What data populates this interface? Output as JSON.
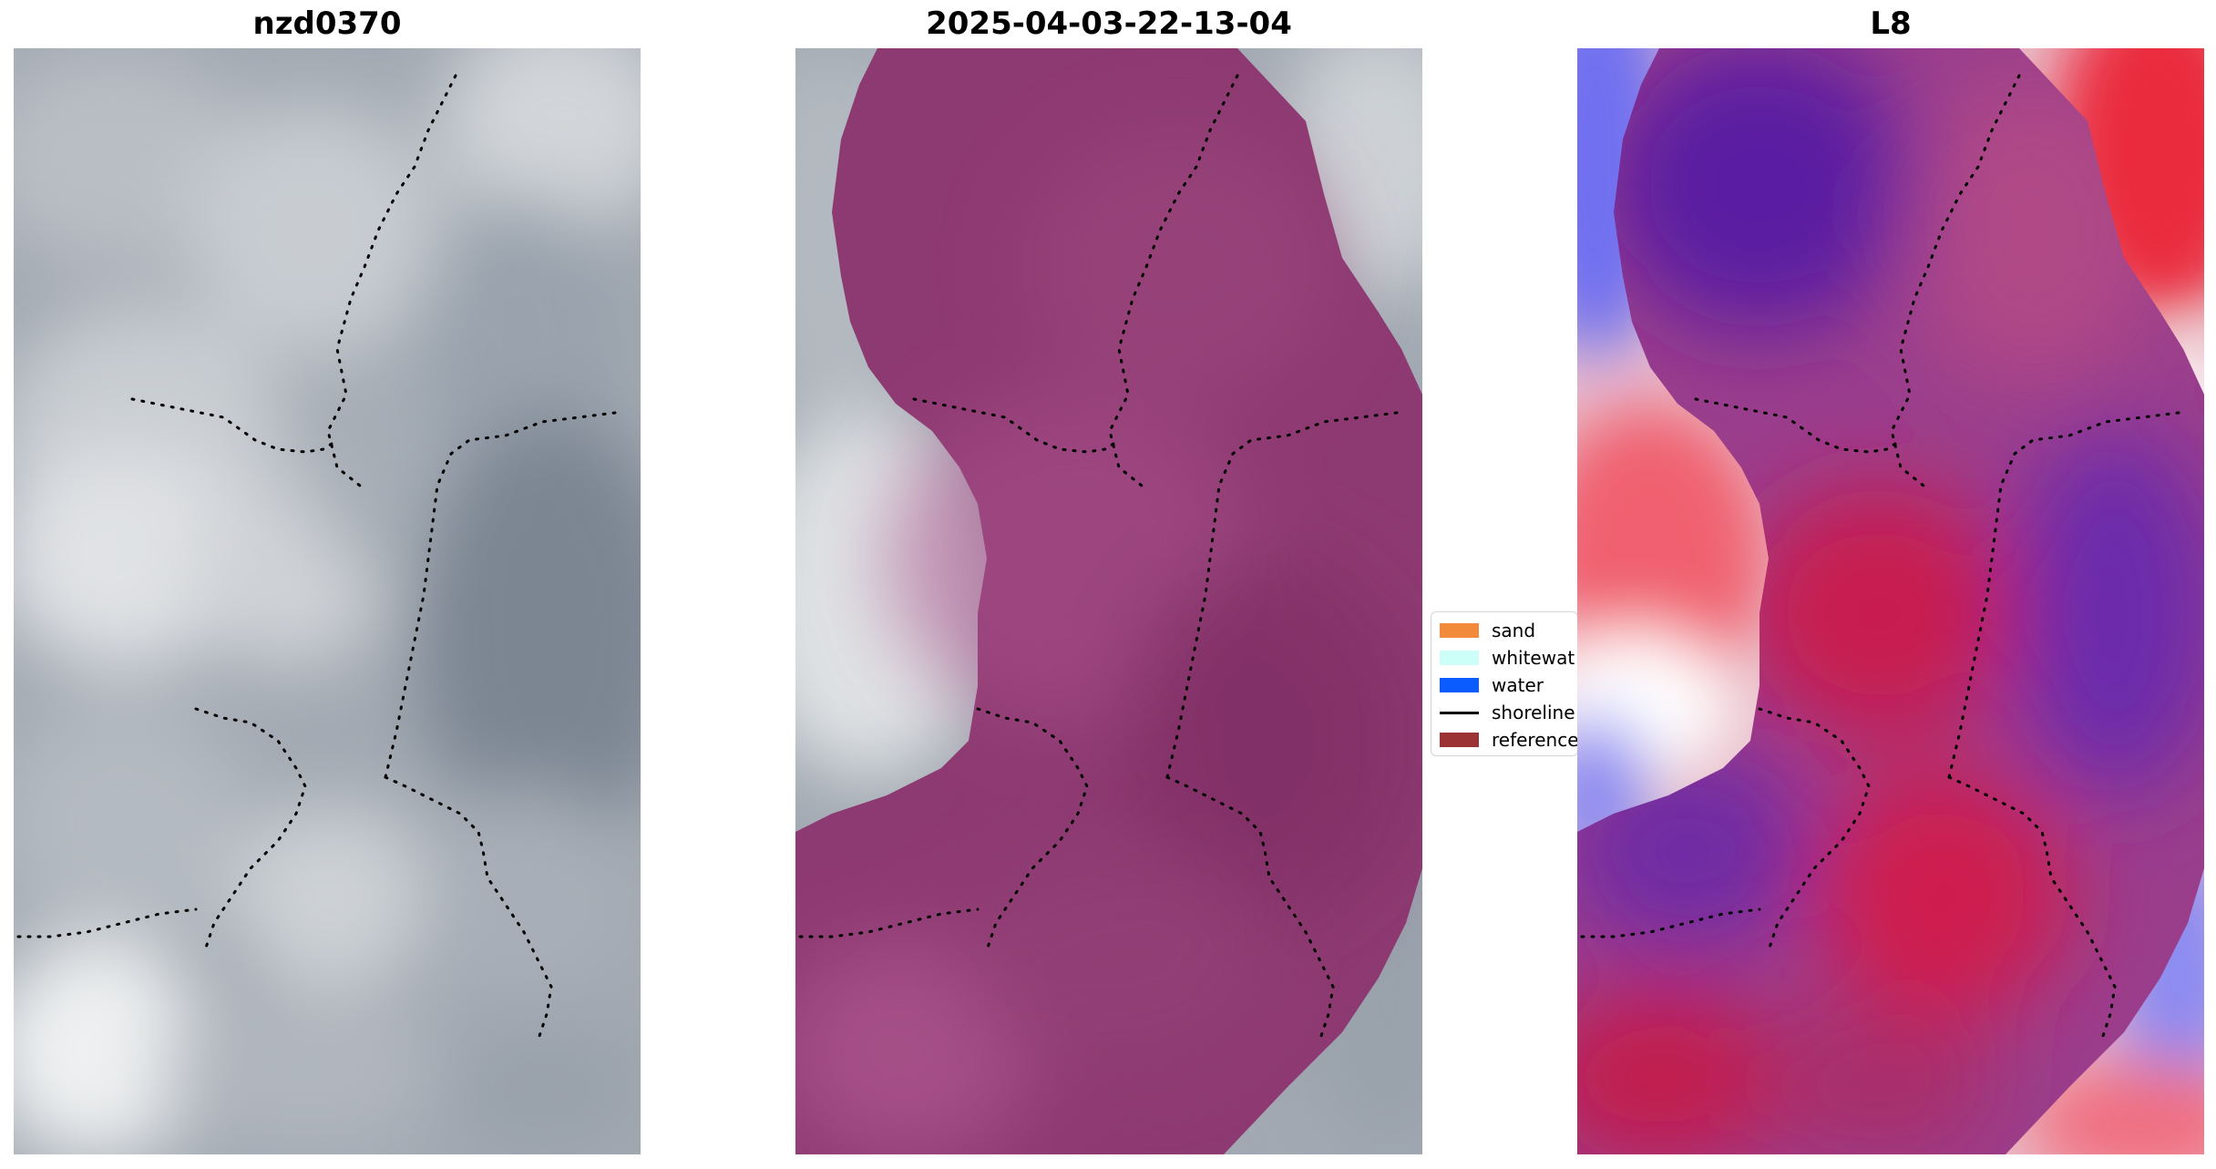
{
  "panels": [
    {
      "title": "nzd0370"
    },
    {
      "title": "2025-04-03-22-13-04"
    },
    {
      "title": "L8"
    }
  ],
  "legend": {
    "items": [
      {
        "label": "sand",
        "color": "#f28a3c",
        "kind": "patch"
      },
      {
        "label": "whitewat",
        "color": "#ccfff8",
        "kind": "patch"
      },
      {
        "label": "water",
        "color": "#0a5cff",
        "kind": "patch"
      },
      {
        "label": "shoreline",
        "color": "#000000",
        "kind": "line"
      },
      {
        "label": "reference",
        "color": "#9b3335",
        "kind": "patch"
      }
    ]
  },
  "colors": {
    "overlay_magenta": "#8e3a72",
    "grey_dark": "#6d7886",
    "grey_light": "#e7e9eb",
    "diverging_red": "#cc1030",
    "diverging_blue": "#5030c0"
  }
}
